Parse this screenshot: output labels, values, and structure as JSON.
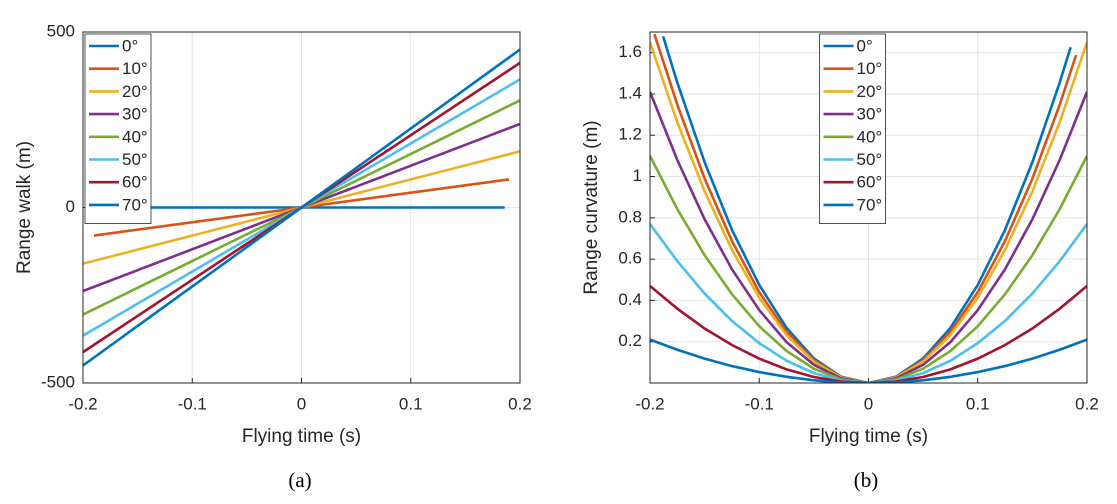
{
  "chart_data": [
    {
      "type": "line",
      "caption": "(a)",
      "xlabel": "Flying time (s)",
      "ylabel": "Range walk (m)",
      "xlim": [
        -0.2,
        0.2
      ],
      "ylim": [
        -500,
        500
      ],
      "xticks": [
        -0.2,
        -0.1,
        0,
        0.1,
        0.2
      ],
      "yticks": [
        -500,
        0,
        500
      ],
      "grid": true,
      "legend": "upper left",
      "series": [
        {
          "name": "0°",
          "color": "#0072bd",
          "x": [
            -0.19,
            0.186
          ],
          "values": [
            0,
            0
          ]
        },
        {
          "name": "10°",
          "color": "#d95319",
          "x": [
            -0.19,
            0.19
          ],
          "values": [
            -80,
            80
          ]
        },
        {
          "name": "20°",
          "color": "#edb120",
          "x": [
            -0.2,
            0.2
          ],
          "values": [
            -160,
            160
          ]
        },
        {
          "name": "30°",
          "color": "#7e2f8e",
          "x": [
            -0.2,
            0.2
          ],
          "values": [
            -238,
            238
          ]
        },
        {
          "name": "40°",
          "color": "#77ac30",
          "x": [
            -0.2,
            0.2
          ],
          "values": [
            -305,
            305
          ]
        },
        {
          "name": "50°",
          "color": "#4dbeee",
          "x": [
            -0.2,
            0.2
          ],
          "values": [
            -365,
            365
          ]
        },
        {
          "name": "60°",
          "color": "#a2142f",
          "x": [
            -0.2,
            0.2
          ],
          "values": [
            -412,
            412
          ]
        },
        {
          "name": "70°",
          "color": "#0072bd",
          "x": [
            -0.2,
            0.2
          ],
          "values": [
            -450,
            450
          ]
        }
      ]
    },
    {
      "type": "line",
      "caption": "(b)",
      "xlabel": "Flying time (s)",
      "ylabel": "Range curvature (m)",
      "xlim": [
        -0.2,
        0.2
      ],
      "ylim": [
        0,
        1.7
      ],
      "xticks": [
        -0.2,
        -0.1,
        0,
        0.1,
        0.2
      ],
      "yticks": [
        0.2,
        0.4,
        0.6,
        0.8,
        1,
        1.2,
        1.4,
        1.6
      ],
      "grid": true,
      "legend": "upper center",
      "series": [
        {
          "name": "0°",
          "color": "#0072bd",
          "x": [
            -0.188,
            -0.175,
            -0.15,
            -0.125,
            -0.1,
            -0.075,
            -0.05,
            -0.025,
            0,
            0.025,
            0.05,
            0.075,
            0.1,
            0.125,
            0.15,
            0.175,
            0.185
          ],
          "values": [
            1.679,
            1.455,
            1.069,
            0.742,
            0.475,
            0.267,
            0.119,
            0.03,
            0,
            0.03,
            0.119,
            0.267,
            0.475,
            0.742,
            1.069,
            1.455,
            1.626
          ]
        },
        {
          "name": "10°",
          "color": "#d95319",
          "x": [
            -0.196,
            -0.175,
            -0.15,
            -0.125,
            -0.1,
            -0.075,
            -0.05,
            -0.025,
            0,
            0.025,
            0.05,
            0.075,
            0.1,
            0.125,
            0.15,
            0.175,
            0.19
          ],
          "values": [
            1.69,
            1.348,
            0.99,
            0.688,
            0.44,
            0.248,
            0.11,
            0.028,
            0,
            0.028,
            0.11,
            0.248,
            0.44,
            0.688,
            0.99,
            1.348,
            1.588
          ]
        },
        {
          "name": "20°",
          "color": "#edb120",
          "x": [
            -0.2,
            -0.175,
            -0.15,
            -0.125,
            -0.1,
            -0.075,
            -0.05,
            -0.025,
            0,
            0.025,
            0.05,
            0.075,
            0.1,
            0.125,
            0.15,
            0.175,
            0.2
          ],
          "values": [
            1.65,
            1.263,
            0.928,
            0.645,
            0.413,
            0.232,
            0.103,
            0.026,
            0,
            0.026,
            0.103,
            0.232,
            0.413,
            0.645,
            0.928,
            1.263,
            1.65
          ]
        },
        {
          "name": "30°",
          "color": "#7e2f8e",
          "x": [
            -0.2,
            -0.175,
            -0.15,
            -0.125,
            -0.1,
            -0.075,
            -0.05,
            -0.025,
            0,
            0.025,
            0.05,
            0.075,
            0.1,
            0.125,
            0.15,
            0.175,
            0.2
          ],
          "values": [
            1.41,
            1.08,
            0.793,
            0.551,
            0.353,
            0.198,
            0.088,
            0.022,
            0,
            0.022,
            0.088,
            0.198,
            0.353,
            0.551,
            0.793,
            1.08,
            1.41
          ]
        },
        {
          "name": "40°",
          "color": "#77ac30",
          "x": [
            -0.2,
            -0.175,
            -0.15,
            -0.125,
            -0.1,
            -0.075,
            -0.05,
            -0.025,
            0,
            0.025,
            0.05,
            0.075,
            0.1,
            0.125,
            0.15,
            0.175,
            0.2
          ],
          "values": [
            1.1,
            0.842,
            0.619,
            0.43,
            0.275,
            0.155,
            0.069,
            0.017,
            0,
            0.017,
            0.069,
            0.155,
            0.275,
            0.43,
            0.619,
            0.842,
            1.1
          ]
        },
        {
          "name": "50°",
          "color": "#4dbeee",
          "x": [
            -0.2,
            -0.175,
            -0.15,
            -0.125,
            -0.1,
            -0.075,
            -0.05,
            -0.025,
            0,
            0.025,
            0.05,
            0.075,
            0.1,
            0.125,
            0.15,
            0.175,
            0.2
          ],
          "values": [
            0.77,
            0.59,
            0.433,
            0.301,
            0.193,
            0.108,
            0.048,
            0.012,
            0,
            0.012,
            0.048,
            0.108,
            0.193,
            0.301,
            0.433,
            0.59,
            0.77
          ]
        },
        {
          "name": "60°",
          "color": "#a2142f",
          "x": [
            -0.2,
            -0.175,
            -0.15,
            -0.125,
            -0.1,
            -0.075,
            -0.05,
            -0.025,
            0,
            0.025,
            0.05,
            0.075,
            0.1,
            0.125,
            0.15,
            0.175,
            0.2
          ],
          "values": [
            0.47,
            0.36,
            0.264,
            0.184,
            0.118,
            0.066,
            0.029,
            0.007,
            0,
            0.007,
            0.029,
            0.066,
            0.118,
            0.184,
            0.264,
            0.36,
            0.47
          ]
        },
        {
          "name": "70°",
          "color": "#0072bd",
          "x": [
            -0.2,
            -0.175,
            -0.15,
            -0.125,
            -0.1,
            -0.075,
            -0.05,
            -0.025,
            0,
            0.025,
            0.05,
            0.075,
            0.1,
            0.125,
            0.15,
            0.175,
            0.2
          ],
          "values": [
            0.21,
            0.161,
            0.118,
            0.082,
            0.053,
            0.03,
            0.013,
            0.003,
            0,
            0.003,
            0.013,
            0.03,
            0.053,
            0.082,
            0.118,
            0.161,
            0.21
          ]
        }
      ]
    }
  ]
}
